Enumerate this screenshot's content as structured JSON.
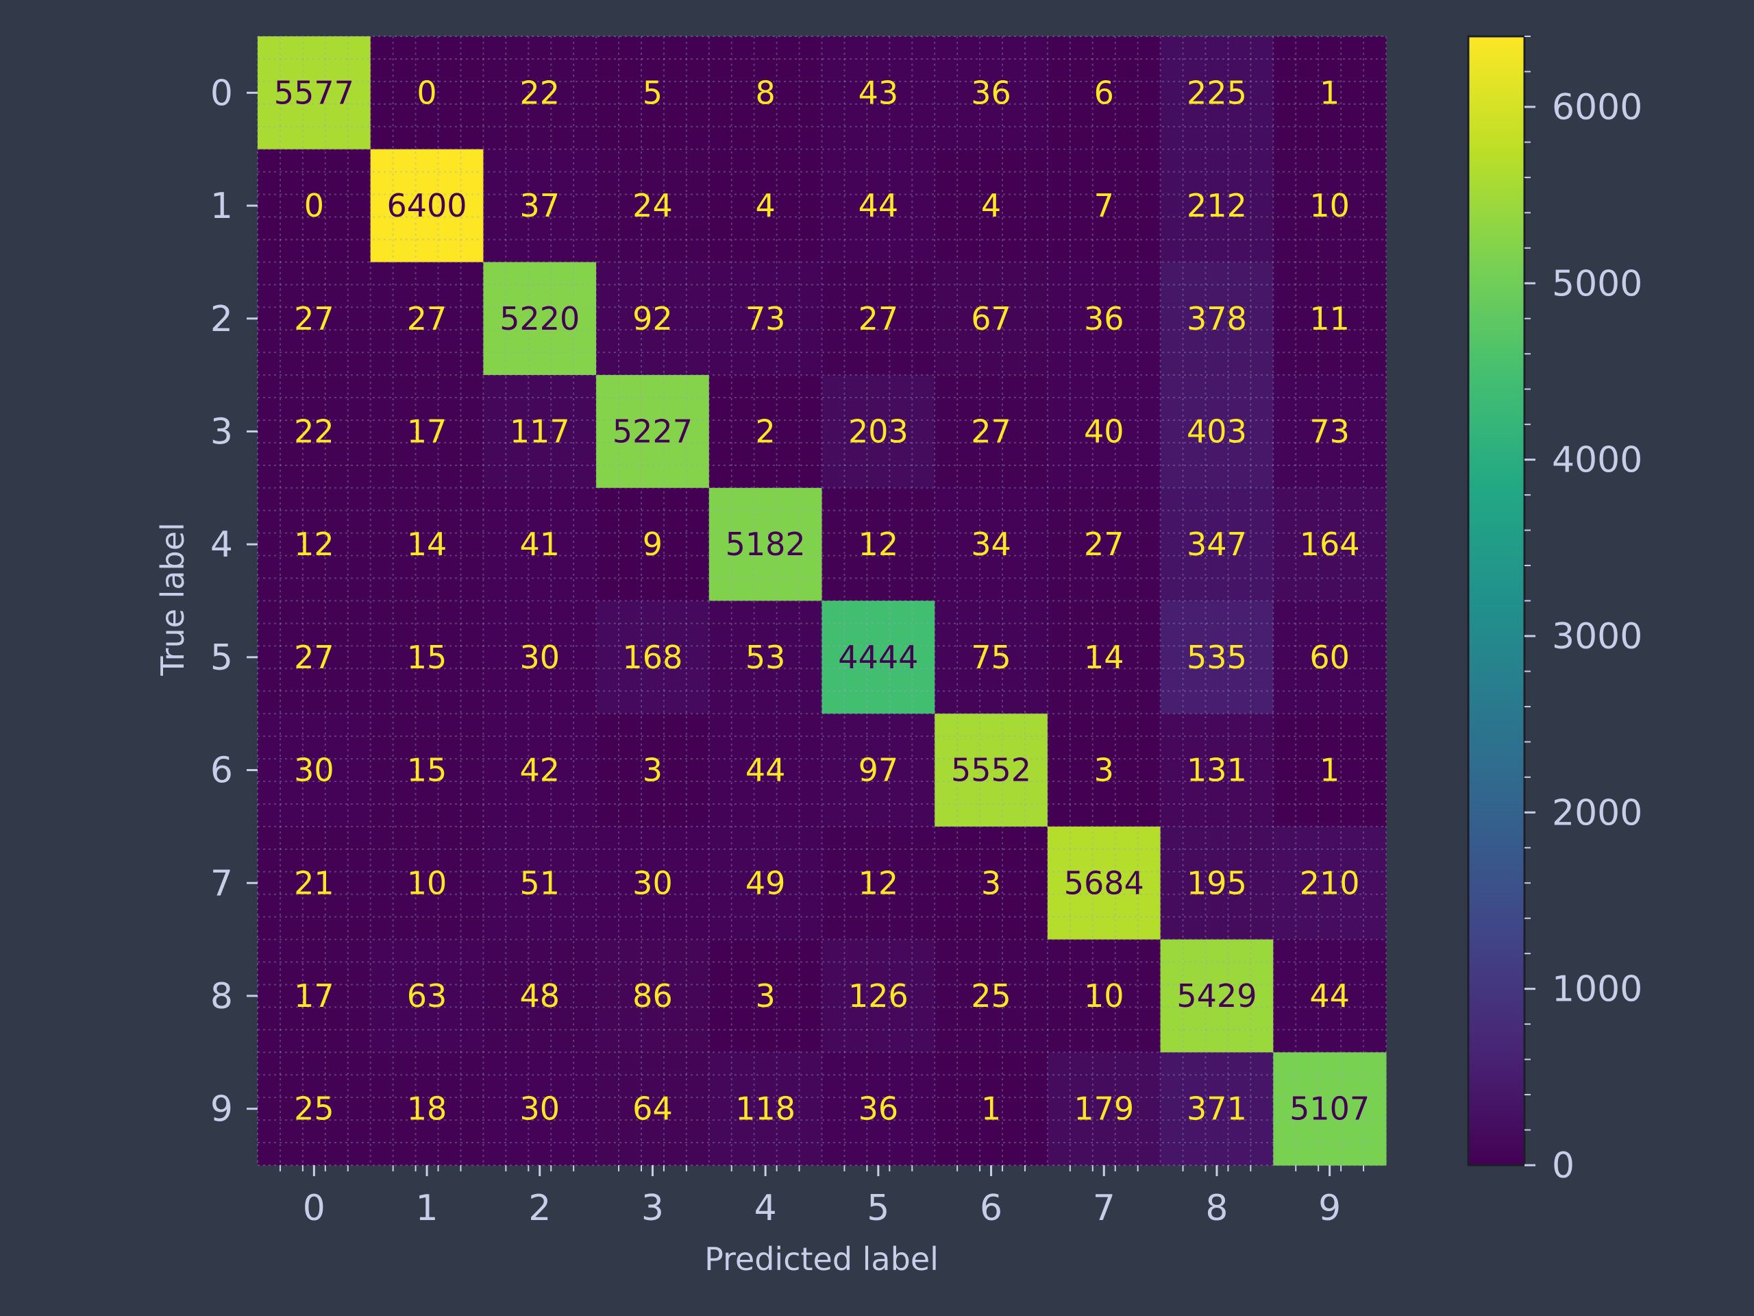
{
  "chart_data": {
    "type": "heatmap",
    "title": "",
    "xlabel": "Predicted label",
    "ylabel": "True label",
    "x_categories": [
      "0",
      "1",
      "2",
      "3",
      "4",
      "5",
      "6",
      "7",
      "8",
      "9"
    ],
    "y_categories": [
      "0",
      "1",
      "2",
      "3",
      "4",
      "5",
      "6",
      "7",
      "8",
      "9"
    ],
    "matrix": [
      [
        5577,
        0,
        22,
        5,
        8,
        43,
        36,
        6,
        225,
        1
      ],
      [
        0,
        6400,
        37,
        24,
        4,
        44,
        4,
        7,
        212,
        10
      ],
      [
        27,
        27,
        5220,
        92,
        73,
        27,
        67,
        36,
        378,
        11
      ],
      [
        22,
        17,
        117,
        5227,
        2,
        203,
        27,
        40,
        403,
        73
      ],
      [
        12,
        14,
        41,
        9,
        5182,
        12,
        34,
        27,
        347,
        164
      ],
      [
        27,
        15,
        30,
        168,
        53,
        4444,
        75,
        14,
        535,
        60
      ],
      [
        30,
        15,
        42,
        3,
        44,
        97,
        5552,
        3,
        131,
        1
      ],
      [
        21,
        10,
        51,
        30,
        49,
        12,
        3,
        5684,
        195,
        210
      ],
      [
        17,
        63,
        48,
        86,
        3,
        126,
        25,
        10,
        5429,
        44
      ],
      [
        25,
        18,
        30,
        64,
        118,
        36,
        1,
        179,
        371,
        5107
      ]
    ],
    "colormap": "viridis",
    "color_range": [
      0,
      6400
    ],
    "colorbar_ticks": [
      0,
      1000,
      2000,
      3000,
      4000,
      5000,
      6000
    ],
    "colorbar_tick_labels": [
      "0",
      "1000",
      "2000",
      "3000",
      "4000",
      "5000",
      "6000"
    ],
    "grid": true,
    "colors": {
      "background": "#323949",
      "text": "#c8cde8",
      "low_value_text": "#fde725",
      "high_value_text": "#440154"
    }
  }
}
